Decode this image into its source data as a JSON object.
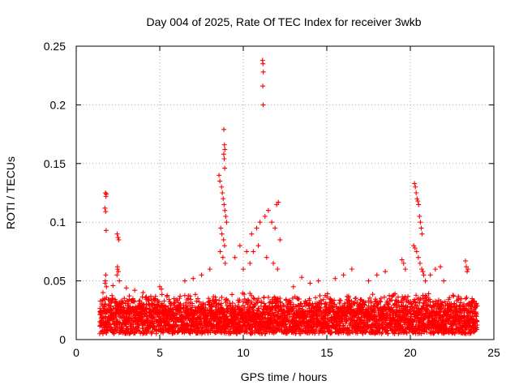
{
  "chart_data": {
    "type": "scatter",
    "title": "Day 004 of 2025, Rate Of TEC Index for receiver 3wkb",
    "xlabel": "GPS time / hours",
    "ylabel": "ROTI / TECUs",
    "xlim": [
      0,
      25
    ],
    "ylim": [
      0,
      0.25
    ],
    "x_ticks": [
      0,
      5,
      10,
      15,
      20,
      25
    ],
    "x_tick_labels": [
      "0",
      "5",
      "10",
      "15",
      "20",
      "25"
    ],
    "y_ticks": [
      0,
      0.05,
      0.1,
      0.15,
      0.2,
      0.25
    ],
    "y_tick_labels": [
      "0",
      "0.05",
      "0.1",
      "0.15",
      "0.2",
      "0.25"
    ],
    "grid": true,
    "marker": "+",
    "color": "#ff0000",
    "series": [
      {
        "name": "ROTI",
        "x": [
          1.75,
          1.78,
          1.8,
          1.72,
          1.76,
          1.79,
          1.74,
          1.81,
          1.77,
          1.73,
          2.45,
          2.5,
          2.55,
          2.48,
          2.52,
          2.47,
          2.58,
          2.44,
          8.55,
          8.6,
          8.7,
          8.75,
          8.8,
          8.85,
          8.9,
          8.95,
          9.0,
          8.65,
          8.72,
          8.82,
          8.88,
          8.62,
          8.78,
          8.92,
          8.84,
          8.87,
          8.9,
          8.83,
          8.86,
          8.89,
          11.15,
          11.18,
          11.2,
          11.17,
          11.19,
          10.5,
          10.8,
          11.0,
          11.3,
          11.5,
          11.7,
          11.9,
          12.0,
          12.1,
          12.2,
          10.6,
          10.9,
          11.4,
          11.8,
          12.05,
          9.5,
          9.8,
          10.0,
          10.2,
          10.4,
          20.25,
          20.3,
          20.35,
          20.4,
          20.45,
          20.5,
          20.55,
          20.6,
          20.65,
          20.7,
          20.2,
          20.28,
          20.38,
          20.48,
          20.58,
          20.68,
          20.75,
          20.8,
          20.9,
          21.2,
          21.5,
          21.8,
          22.0,
          23.3,
          23.35,
          23.4,
          23.45,
          19.5,
          19.6,
          19.7,
          18.0,
          18.5,
          17.5,
          16.5,
          16.0,
          15.5,
          14.5,
          14.0,
          13.5,
          13.0,
          5.0,
          5.1,
          4.0,
          3.5,
          3.0,
          2.2,
          1.6,
          6.5,
          7.0,
          7.5,
          8.0
        ],
        "y": [
          0.125,
          0.122,
          0.124,
          0.112,
          0.109,
          0.093,
          0.05,
          0.045,
          0.055,
          0.048,
          0.09,
          0.087,
          0.085,
          0.06,
          0.058,
          0.062,
          0.05,
          0.055,
          0.14,
          0.135,
          0.13,
          0.125,
          0.12,
          0.115,
          0.11,
          0.105,
          0.1,
          0.095,
          0.09,
          0.085,
          0.08,
          0.075,
          0.07,
          0.065,
          0.179,
          0.166,
          0.162,
          0.158,
          0.154,
          0.146,
          0.238,
          0.235,
          0.228,
          0.216,
          0.2,
          0.09,
          0.095,
          0.1,
          0.105,
          0.11,
          0.1,
          0.095,
          0.115,
          0.117,
          0.085,
          0.075,
          0.08,
          0.07,
          0.065,
          0.06,
          0.07,
          0.08,
          0.06,
          0.075,
          0.065,
          0.133,
          0.13,
          0.125,
          0.12,
          0.118,
          0.115,
          0.105,
          0.1,
          0.095,
          0.09,
          0.08,
          0.078,
          0.075,
          0.07,
          0.065,
          0.06,
          0.058,
          0.055,
          0.05,
          0.055,
          0.06,
          0.062,
          0.05,
          0.067,
          0.062,
          0.058,
          0.06,
          0.068,
          0.065,
          0.06,
          0.055,
          0.058,
          0.05,
          0.06,
          0.055,
          0.052,
          0.05,
          0.048,
          0.053,
          0.045,
          0.045,
          0.043,
          0.04,
          0.042,
          0.044,
          0.046,
          0.04,
          0.05,
          0.052,
          0.055,
          0.06
        ]
      }
    ],
    "baseline_band": {
      "x_start": 1.4,
      "x_end": 24.0,
      "y_low": 0.005,
      "y_high": 0.04
    }
  }
}
